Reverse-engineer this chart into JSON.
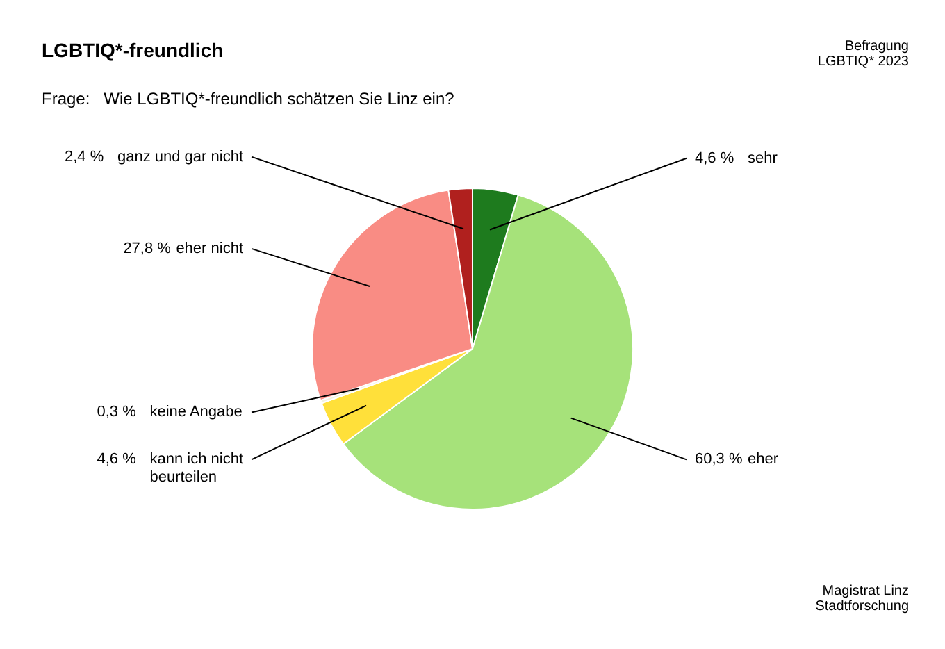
{
  "chart_data": {
    "type": "pie",
    "title": "LGBTIQ*-freundlich",
    "subtitle": "Frage:   Wie LGBTIQ*-freundlich schätzen Sie Linz ein?",
    "annotations": [
      "Befragung\nLGBTIQ* 2023",
      "Magistrat Linz\nStadtforschung"
    ],
    "categories": [
      "sehr",
      "eher",
      "kann ich nicht beurteilen",
      "keine Angabe",
      "eher nicht",
      "ganz und gar nicht"
    ],
    "values": [
      4.6,
      60.3,
      4.6,
      0.3,
      27.8,
      2.4
    ],
    "colors": [
      "#1e7b1e",
      "#a6e27a",
      "#ffe03a",
      "#f2f2e0",
      "#f98c84",
      "#b0201e"
    ],
    "value_labels": [
      "4,6 %",
      "60,3 %",
      "4,6 %",
      "0,3 %",
      "27,8 %",
      "2,4 %"
    ]
  }
}
